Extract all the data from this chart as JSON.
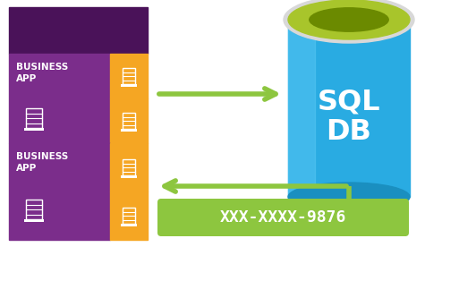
{
  "bg_color": "#ffffff",
  "purple_dark": "#4a1259",
  "purple_mid": "#7b2d8b",
  "orange": "#f5a623",
  "green_arrow": "#8dc63f",
  "green_box": "#8dc63f",
  "cyan_db": "#29abe2",
  "cyan_db_dark": "#1a8fc0",
  "cyan_db_light": "#5ac8f5",
  "green_top": "#a8c52b",
  "green_top_dark": "#6b8a00",
  "white": "#ffffff",
  "gray_rim": "#d8d8d8",
  "sql_db_text": "SQL\nDB",
  "business_app_text": "BUSINESS\nAPP",
  "masked_text": "XXX-XXXX-9876",
  "fig_w": 5.13,
  "fig_h": 3.14,
  "dpi": 100
}
